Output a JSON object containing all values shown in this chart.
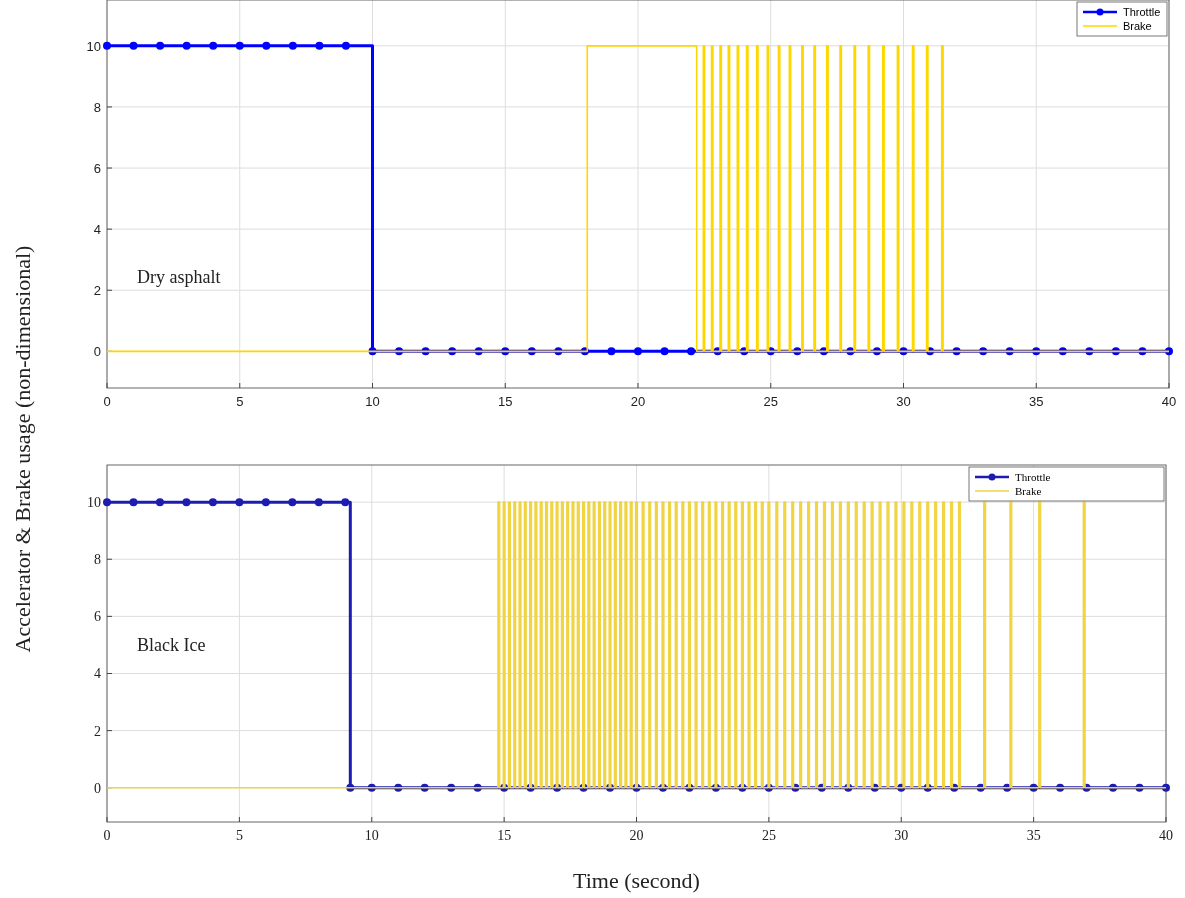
{
  "chart_data": [
    {
      "type": "step",
      "xlim": [
        0,
        40
      ],
      "xticks": [
        0,
        5,
        10,
        15,
        20,
        25,
        30,
        35,
        40
      ],
      "ylim": [
        -1.2,
        11.5
      ],
      "yticks": [
        0,
        2,
        4,
        6,
        8,
        10
      ],
      "grid": true,
      "legend": "top right",
      "ylabel": "Accelerator & Brake usage (non-dimensional)",
      "annotations": [
        "Dry asphalt"
      ],
      "series": [
        {
          "name": "Throttle",
          "color": "#0000ff",
          "marker": "circle",
          "x": [
            0,
            1,
            2,
            3,
            4,
            5,
            6,
            7,
            8,
            9,
            10,
            11,
            12,
            13,
            14,
            15,
            16,
            17,
            18,
            19,
            20,
            21,
            22,
            23,
            24,
            25,
            26,
            27,
            28,
            29,
            30,
            31,
            32,
            33,
            34,
            35,
            36,
            37,
            38,
            39,
            40
          ],
          "values": [
            10,
            10,
            10,
            10,
            10,
            10,
            10,
            10,
            10,
            10,
            0,
            0,
            0,
            0,
            0,
            0,
            0,
            0,
            0,
            0,
            0,
            0,
            0,
            0,
            0,
            0,
            0,
            0,
            0,
            0,
            0,
            0,
            0,
            0,
            0,
            0,
            0,
            0,
            0,
            0,
            0
          ]
        },
        {
          "name": "Brake",
          "color": "#ffd700",
          "marker": "none",
          "x": [
            0,
            18.09,
            22.21,
            22.46,
            22.51,
            22.77,
            22.82,
            23.09,
            23.14,
            23.4,
            23.45,
            23.74,
            23.79,
            24.09,
            24.14,
            24.47,
            24.52,
            24.87,
            24.92,
            25.29,
            25.34,
            25.7,
            25.75,
            26.17,
            26.22,
            26.63,
            26.68,
            27.11,
            27.16,
            27.61,
            27.66,
            28.14,
            28.19,
            28.67,
            28.72,
            29.22,
            29.27,
            29.77,
            29.82,
            30.34,
            30.39,
            30.87,
            30.92,
            31.44,
            31.49,
            40
          ],
          "values": [
            0,
            10,
            0,
            10,
            0,
            10,
            0,
            10,
            0,
            10,
            0,
            10,
            0,
            10,
            0,
            10,
            0,
            10,
            0,
            10,
            0,
            10,
            0,
            10,
            0,
            10,
            0,
            10,
            0,
            10,
            0,
            10,
            0,
            10,
            0,
            10,
            0,
            10,
            0,
            10,
            0,
            10,
            0,
            10,
            0,
            0
          ]
        }
      ]
    },
    {
      "type": "step",
      "xlim": [
        0,
        40
      ],
      "xticks": [
        0,
        5,
        10,
        15,
        20,
        25,
        30,
        35,
        40
      ],
      "ylim": [
        -1.2,
        11.3
      ],
      "yticks": [
        0,
        2,
        4,
        6,
        8,
        10
      ],
      "grid": true,
      "legend": "top right",
      "xlabel": "Time (second)",
      "annotations": [
        "Black Ice"
      ],
      "series": [
        {
          "name": "Throttle",
          "color": "#1c1cb0",
          "marker": "circle",
          "x": [
            0,
            1,
            2,
            3,
            4,
            5,
            6,
            7,
            8,
            9,
            9.19,
            10,
            11,
            12,
            13,
            14,
            15,
            16,
            17,
            18,
            19,
            20,
            21,
            22,
            23,
            24,
            25,
            26,
            27,
            28,
            29,
            30,
            31,
            32,
            33,
            34,
            35,
            36,
            37,
            38,
            39,
            40
          ],
          "values": [
            10,
            10,
            10,
            10,
            10,
            10,
            10,
            10,
            10,
            10,
            0,
            0,
            0,
            0,
            0,
            0,
            0,
            0,
            0,
            0,
            0,
            0,
            0,
            0,
            0,
            0,
            0,
            0,
            0,
            0,
            0,
            0,
            0,
            0,
            0,
            0,
            0,
            0,
            0,
            0,
            0,
            0
          ]
        },
        {
          "name": "Brake",
          "color": "#f0d442",
          "marker": "none",
          "x": [
            0,
            14.77,
            14.83,
            14.97,
            15.03,
            15.17,
            15.23,
            15.37,
            15.43,
            15.57,
            15.63,
            15.77,
            15.83,
            15.97,
            16.03,
            16.17,
            16.23,
            16.37,
            16.43,
            16.57,
            16.63,
            16.77,
            16.83,
            16.97,
            17.03,
            17.17,
            17.23,
            17.37,
            17.43,
            17.57,
            17.63,
            17.77,
            17.83,
            17.97,
            18.03,
            18.17,
            18.23,
            18.37,
            18.43,
            18.57,
            18.63,
            18.77,
            18.83,
            18.97,
            19.03,
            19.17,
            19.23,
            19.37,
            19.43,
            19.57,
            19.63,
            19.77,
            19.83,
            19.97,
            20.03,
            20.22,
            20.28,
            20.47,
            20.53,
            20.72,
            20.78,
            20.97,
            21.03,
            21.22,
            21.28,
            21.47,
            21.53,
            21.72,
            21.78,
            21.97,
            22.03,
            22.22,
            22.28,
            22.47,
            22.53,
            22.72,
            22.78,
            22.97,
            23.03,
            23.22,
            23.28,
            23.47,
            23.53,
            23.72,
            23.78,
            23.97,
            24.03,
            24.22,
            24.28,
            24.47,
            24.53,
            24.72,
            24.78,
            24.97,
            25.03,
            25.27,
            25.33,
            25.57,
            25.63,
            25.87,
            25.93,
            26.17,
            26.23,
            26.47,
            26.53,
            26.77,
            26.83,
            27.07,
            27.13,
            27.37,
            27.43,
            27.67,
            27.73,
            27.97,
            28.03,
            28.27,
            28.33,
            28.57,
            28.63,
            28.87,
            28.93,
            29.17,
            29.23,
            29.47,
            29.53,
            29.77,
            29.83,
            30.07,
            30.13,
            30.37,
            30.43,
            30.67,
            30.73,
            30.97,
            31.03,
            31.27,
            31.33,
            31.57,
            31.63,
            31.87,
            31.93,
            32.17,
            32.23,
            33.12,
            33.18,
            34.11,
            34.17,
            35.2,
            35.26,
            36.88,
            36.94,
            40
          ],
          "values": [
            0,
            10,
            0,
            10,
            0,
            10,
            0,
            10,
            0,
            10,
            0,
            10,
            0,
            10,
            0,
            10,
            0,
            10,
            0,
            10,
            0,
            10,
            0,
            10,
            0,
            10,
            0,
            10,
            0,
            10,
            0,
            10,
            0,
            10,
            0,
            10,
            0,
            10,
            0,
            10,
            0,
            10,
            0,
            10,
            0,
            10,
            0,
            10,
            0,
            10,
            0,
            10,
            0,
            10,
            0,
            10,
            0,
            10,
            0,
            10,
            0,
            10,
            0,
            10,
            0,
            10,
            0,
            10,
            0,
            10,
            0,
            10,
            0,
            10,
            0,
            10,
            0,
            10,
            0,
            10,
            0,
            10,
            0,
            10,
            0,
            10,
            0,
            10,
            0,
            10,
            0,
            10,
            0,
            10,
            0,
            10,
            0,
            10,
            0,
            10,
            0,
            10,
            0,
            10,
            0,
            10,
            0,
            10,
            0,
            10,
            0,
            10,
            0,
            10,
            0,
            10,
            0,
            10,
            0,
            10,
            0,
            10,
            0,
            10,
            0,
            10,
            0,
            10,
            0,
            10,
            0,
            10,
            0,
            10,
            0,
            10,
            0,
            10,
            0,
            10,
            0,
            10,
            0,
            10,
            0,
            10,
            0,
            10,
            0,
            10,
            0,
            0
          ]
        }
      ]
    }
  ]
}
